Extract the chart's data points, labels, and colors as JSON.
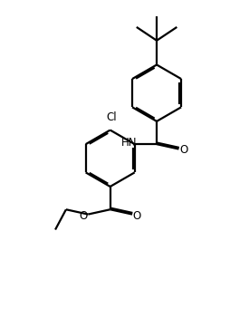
{
  "bg_color": "#ffffff",
  "line_color": "#000000",
  "line_width": 1.6,
  "dbo": 0.055,
  "figsize": [
    2.54,
    3.51
  ],
  "dpi": 100,
  "xlim": [
    0.0,
    8.5
  ],
  "ylim": [
    0.0,
    11.5
  ]
}
